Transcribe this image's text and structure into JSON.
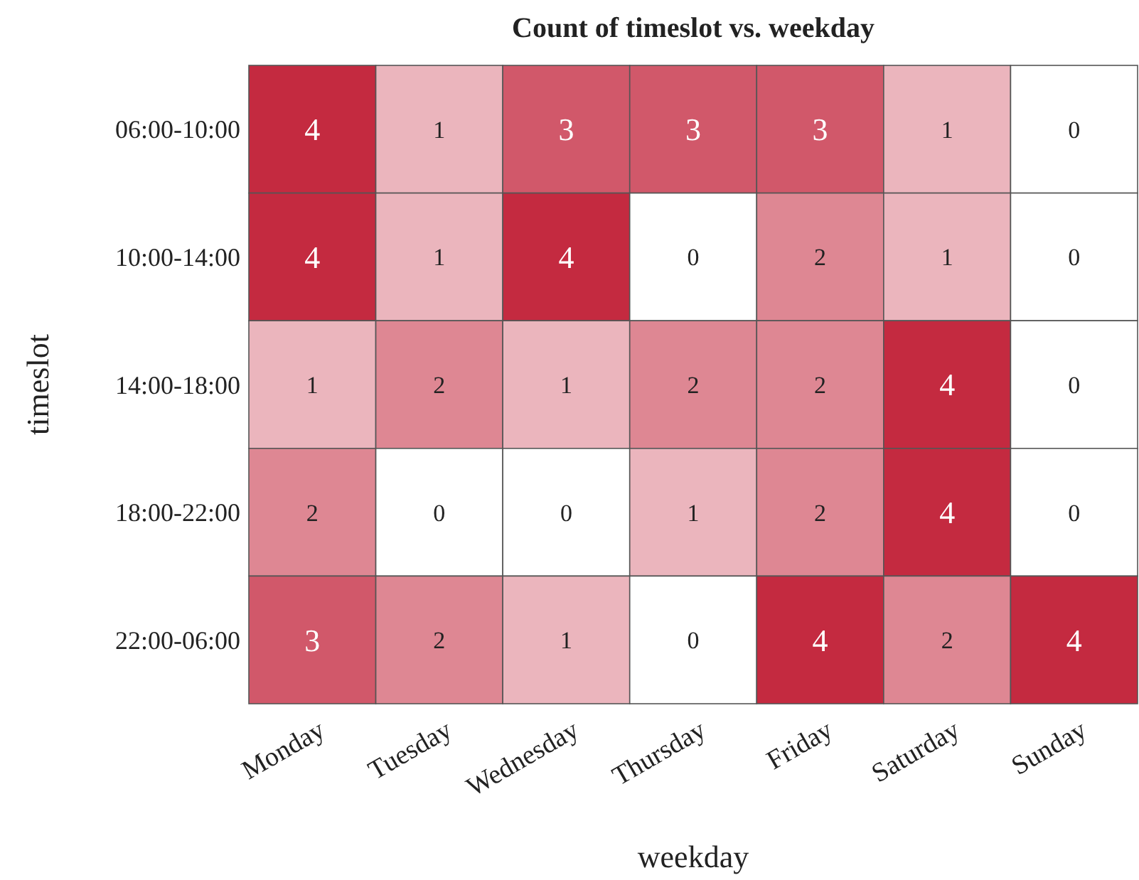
{
  "chart_data": {
    "type": "heatmap",
    "title": "Count of timeslot vs. weekday",
    "xlabel": "weekday",
    "ylabel": "timeslot",
    "categories": [
      "Monday",
      "Tuesday",
      "Wednesday",
      "Thursday",
      "Friday",
      "Saturday",
      "Sunday"
    ],
    "y_categories": [
      "06:00-10:00",
      "10:00-14:00",
      "14:00-18:00",
      "18:00-22:00",
      "22:00-06:00"
    ],
    "cells": [
      [
        4,
        1,
        3,
        3,
        3,
        1,
        0
      ],
      [
        4,
        1,
        4,
        0,
        2,
        1,
        0
      ],
      [
        1,
        2,
        1,
        2,
        2,
        4,
        0
      ],
      [
        2,
        0,
        0,
        1,
        2,
        4,
        0
      ],
      [
        3,
        2,
        1,
        0,
        4,
        2,
        4
      ]
    ],
    "data_labels": true
  }
}
